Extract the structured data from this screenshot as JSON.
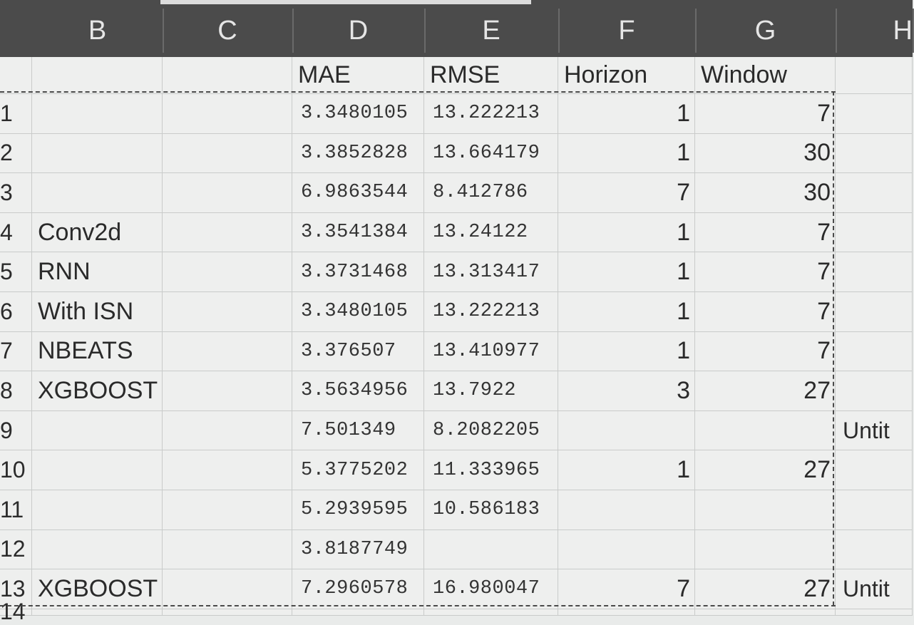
{
  "columns": [
    "B",
    "C",
    "D",
    "E",
    "F",
    "G",
    "H"
  ],
  "header_row": {
    "mae": "MAE",
    "rmse": "RMSE",
    "horizon": "Horizon",
    "window": "Window"
  },
  "rows": [
    {
      "num": "1",
      "label": "",
      "mae": "3.3480105",
      "rmse": "13.222213",
      "horizon": "1",
      "window": "7",
      "extra": ""
    },
    {
      "num": "2",
      "label": "",
      "mae": "3.3852828",
      "rmse": "13.664179",
      "horizon": "1",
      "window": "30",
      "extra": ""
    },
    {
      "num": "3",
      "label": "",
      "mae": "6.9863544",
      "rmse": "8.412786",
      "horizon": "7",
      "window": "30",
      "extra": ""
    },
    {
      "num": "4",
      "label": "Conv2d",
      "mae": "3.3541384",
      "rmse": "13.24122",
      "horizon": "1",
      "window": "7",
      "extra": ""
    },
    {
      "num": "5",
      "label": "RNN",
      "mae": "3.3731468",
      "rmse": "13.313417",
      "horizon": "1",
      "window": "7",
      "extra": ""
    },
    {
      "num": "6",
      "label": "With ISN",
      "mae": "3.3480105",
      "rmse": "13.222213",
      "horizon": "1",
      "window": "7",
      "extra": ""
    },
    {
      "num": "7",
      "label": "NBEATS",
      "mae": "3.376507",
      "rmse": "13.410977",
      "horizon": "1",
      "window": "7",
      "extra": ""
    },
    {
      "num": "8",
      "label": "XGBOOST",
      "mae": "3.5634956",
      "rmse": "13.7922",
      "horizon": "3",
      "window": "27",
      "extra": ""
    },
    {
      "num": "9",
      "label": "",
      "mae": "7.501349",
      "rmse": "8.2082205",
      "horizon": "",
      "window": "",
      "extra": "Untit"
    },
    {
      "num": "10",
      "label": "",
      "mae": "5.3775202",
      "rmse": "11.333965",
      "horizon": "1",
      "window": "27",
      "extra": ""
    },
    {
      "num": "11",
      "label": "",
      "mae": "5.2939595",
      "rmse": "10.586183",
      "horizon": "",
      "window": "",
      "extra": ""
    },
    {
      "num": "12",
      "label": "",
      "mae": "3.8187749",
      "rmse": "",
      "horizon": "",
      "window": "",
      "extra": ""
    },
    {
      "num": "13",
      "label": "XGBOOST",
      "mae": "7.2960578",
      "rmse": "16.980047",
      "horizon": "7",
      "window": "27",
      "extra": "Untit"
    },
    {
      "num": "14",
      "label": "",
      "mae": "",
      "rmse": "",
      "horizon": "",
      "window": "",
      "extra": ""
    }
  ]
}
